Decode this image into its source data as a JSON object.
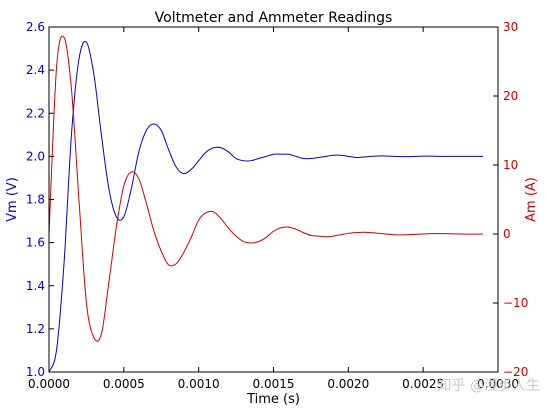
{
  "chart_data": {
    "type": "line",
    "title": "Voltmeter and Ammeter Readings",
    "xlabel": "Time (s)",
    "ylabel_left": "Vm (V)",
    "ylabel_right": "Am (A)",
    "xlim": [
      0.0,
      0.003
    ],
    "ylim_left": [
      1.0,
      2.6
    ],
    "ylim_right": [
      -20,
      30
    ],
    "x_ticks": [
      "0.0000",
      "0.0005",
      "0.0010",
      "0.0015",
      "0.0020",
      "0.0025",
      "0.0030"
    ],
    "y_left_ticks": [
      "1.0",
      "1.2",
      "1.4",
      "1.6",
      "1.8",
      "2.0",
      "2.2",
      "2.4",
      "2.6"
    ],
    "y_right_ticks": [
      "−20",
      "−10",
      "0",
      "10",
      "20",
      "30"
    ],
    "grid": false,
    "colors": {
      "vm": "#0000cc",
      "am": "#cc0000"
    },
    "series": [
      {
        "axis": "left",
        "color": "#0000cc",
        "x": [
          0.0,
          5e-05,
          0.0001,
          0.00015,
          0.0002,
          0.00025,
          0.0003,
          0.00035,
          0.0004,
          0.00045,
          0.0005,
          0.00055,
          0.0006,
          0.00065,
          0.0007,
          0.00075,
          0.0008,
          0.00085,
          0.0009,
          0.00095,
          0.001,
          0.00105,
          0.0011,
          0.00115,
          0.0012,
          0.00125,
          0.0013,
          0.00135,
          0.0014,
          0.00145,
          0.0015,
          0.00155,
          0.0016,
          0.00165,
          0.0017,
          0.00175,
          0.0018,
          0.00185,
          0.0019,
          0.00195,
          0.002,
          0.00205,
          0.0021,
          0.00215,
          0.0022,
          0.00225,
          0.0023,
          0.00235,
          0.0024,
          0.00245,
          0.0025,
          0.00255,
          0.0026,
          0.00265,
          0.0027,
          0.00275,
          0.0028,
          0.00285,
          0.0029
        ],
        "values": [
          1.0,
          1.1,
          1.5,
          2.1,
          2.45,
          2.53,
          2.38,
          2.1,
          1.85,
          1.72,
          1.72,
          1.85,
          2.02,
          2.12,
          2.15,
          2.12,
          2.03,
          1.95,
          1.92,
          1.94,
          1.98,
          2.02,
          2.04,
          2.04,
          2.02,
          1.99,
          1.98,
          1.98,
          1.99,
          2.0,
          2.01,
          2.01,
          2.01,
          2.0,
          1.99,
          1.99,
          1.995,
          2.0,
          2.005,
          2.005,
          2.0,
          1.995,
          1.997,
          2.0,
          2.002,
          2.002,
          2.0,
          1.999,
          1.999,
          2.0,
          2.001,
          2.001,
          2.0,
          2.0,
          2.0,
          2.0,
          2.0,
          2.0,
          2.0
        ]
      },
      {
        "axis": "right",
        "color": "#cc0000",
        "x": [
          0.0,
          5e-05,
          0.0001,
          0.00015,
          0.0002,
          0.00025,
          0.0003,
          0.00035,
          0.0004,
          0.00045,
          0.0005,
          0.00055,
          0.0006,
          0.00065,
          0.0007,
          0.00075,
          0.0008,
          0.00085,
          0.0009,
          0.00095,
          0.001,
          0.00105,
          0.0011,
          0.00115,
          0.0012,
          0.00125,
          0.0013,
          0.00135,
          0.0014,
          0.00145,
          0.0015,
          0.00155,
          0.0016,
          0.00165,
          0.0017,
          0.00175,
          0.0018,
          0.00185,
          0.0019,
          0.00195,
          0.002,
          0.00205,
          0.0021,
          0.00215,
          0.0022,
          0.00225,
          0.0023,
          0.00235,
          0.0024,
          0.00245,
          0.0025,
          0.00255,
          0.0026,
          0.00265,
          0.0027,
          0.00275,
          0.0028,
          0.00285,
          0.0029
        ],
        "values": [
          0.0,
          24.0,
          28.5,
          21.0,
          5.0,
          -10.0,
          -15.0,
          -14.5,
          -7.0,
          1.0,
          7.0,
          9.0,
          8.0,
          4.5,
          0.5,
          -2.5,
          -4.5,
          -4.3,
          -2.7,
          -0.5,
          2.0,
          3.1,
          3.2,
          2.2,
          0.8,
          -0.3,
          -1.1,
          -1.3,
          -1.1,
          -0.5,
          0.4,
          0.9,
          1.0,
          0.7,
          0.2,
          -0.2,
          -0.3,
          -0.4,
          -0.3,
          -0.1,
          0.1,
          0.2,
          0.25,
          0.2,
          0.1,
          0.0,
          -0.1,
          -0.12,
          -0.1,
          -0.05,
          0.0,
          0.05,
          0.06,
          0.05,
          0.02,
          0.0,
          -0.02,
          -0.02,
          0.0
        ]
      }
    ]
  },
  "watermark": "知乎 @漫步人生"
}
